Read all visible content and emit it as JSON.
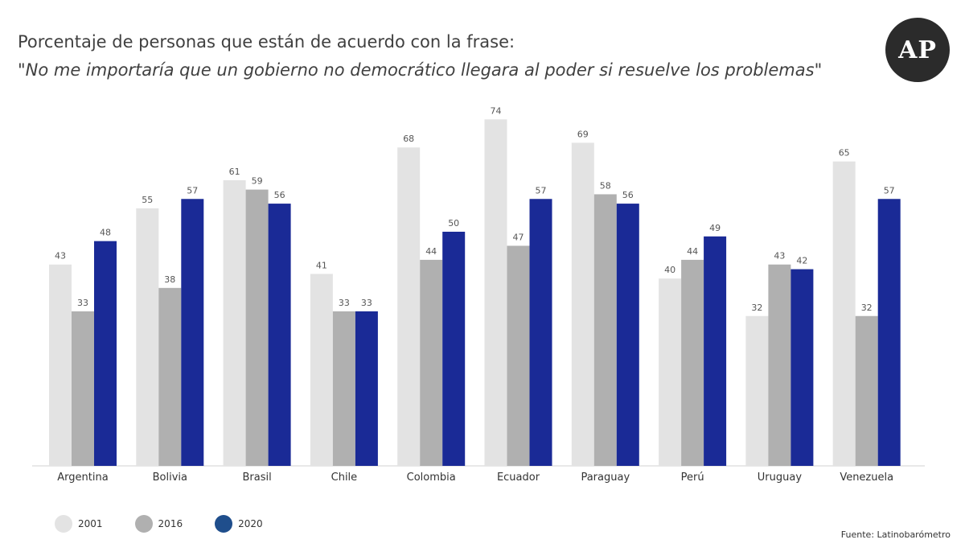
{
  "header": {
    "title": "Porcentaje de personas que están de acuerdo con la frase:",
    "subtitle": "\"No me importaría que un gobierno no democrático llegara al poder si resuelve los problemas\""
  },
  "logo": {
    "text": "AP"
  },
  "source": "Fuente: Latinobarómetro",
  "colors": {
    "2001": "#e3e3e3",
    "2016": "#b0b0b0",
    "2020": "#1a2a96",
    "legend_2020": "#1f4e8c",
    "logo_bg": "#2b2b2b"
  },
  "chart_data": {
    "type": "bar",
    "categories": [
      "Argentina",
      "Bolivia",
      "Brasil",
      "Chile",
      "Colombia",
      "Ecuador",
      "Paraguay",
      "Perú",
      "Uruguay",
      "Venezuela"
    ],
    "series": [
      {
        "name": "2001",
        "values": [
          43,
          55,
          61,
          41,
          68,
          74,
          69,
          40,
          32,
          65
        ]
      },
      {
        "name": "2016",
        "values": [
          33,
          38,
          59,
          33,
          44,
          47,
          58,
          44,
          43,
          32
        ]
      },
      {
        "name": "2020",
        "values": [
          48,
          57,
          56,
          33,
          50,
          57,
          56,
          49,
          42,
          57
        ]
      }
    ],
    "ylim": [
      0,
      74
    ],
    "grid": false,
    "legend_position": "bottom-left",
    "data_labels": true
  }
}
